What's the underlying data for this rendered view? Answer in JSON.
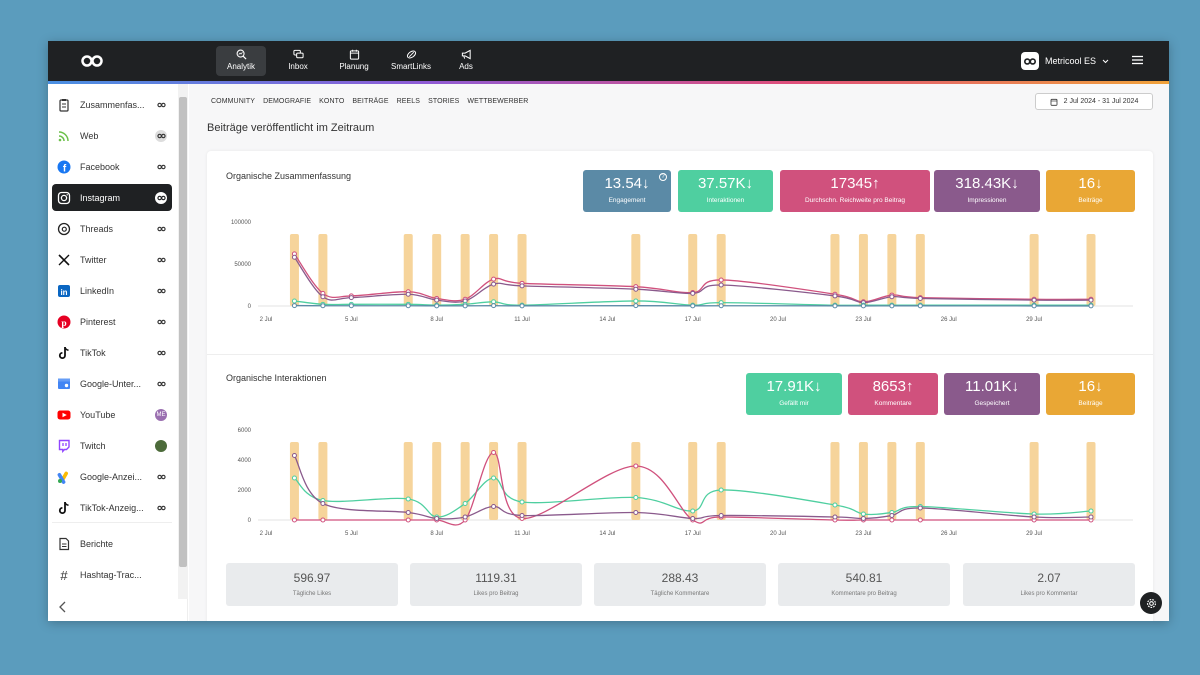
{
  "topnav": {
    "items": [
      {
        "label": "Analytik",
        "icon": "analytics-icon"
      },
      {
        "label": "Inbox",
        "icon": "inbox-icon"
      },
      {
        "label": "Planung",
        "icon": "calendar-icon"
      },
      {
        "label": "SmartLinks",
        "icon": "link-icon"
      },
      {
        "label": "Ads",
        "icon": "megaphone-icon"
      }
    ],
    "active": "Analytik",
    "account": "Metricool ES"
  },
  "sidebar": {
    "items": [
      {
        "label": "Zusammenfas...",
        "icon": "clipboard-icon"
      },
      {
        "label": "Web",
        "icon": "rss-icon"
      },
      {
        "label": "Facebook",
        "icon": "facebook-icon"
      },
      {
        "label": "Instagram",
        "icon": "instagram-icon"
      },
      {
        "label": "Threads",
        "icon": "threads-icon"
      },
      {
        "label": "Twitter",
        "icon": "x-icon"
      },
      {
        "label": "LinkedIn",
        "icon": "linkedin-icon"
      },
      {
        "label": "Pinterest",
        "icon": "pinterest-icon"
      },
      {
        "label": "TikTok",
        "icon": "tiktok-icon"
      },
      {
        "label": "Google-Unter...",
        "icon": "google-business-icon"
      },
      {
        "label": "YouTube",
        "icon": "youtube-icon"
      },
      {
        "label": "Twitch",
        "icon": "twitch-icon"
      },
      {
        "label": "Google-Anzei...",
        "icon": "google-ads-icon"
      },
      {
        "label": "TikTok-Anzeig...",
        "icon": "tiktok-ads-icon"
      },
      {
        "label": "Berichte",
        "icon": "report-icon"
      },
      {
        "label": "Hashtag-Trac...",
        "icon": "hashtag-icon"
      }
    ],
    "active": "Instagram",
    "badge_me": "ME"
  },
  "tabs": [
    "COMMUNITY",
    "DEMOGRAFIE",
    "KONTO",
    "BEITRÄGE",
    "REELS",
    "STORIES",
    "WETTBEWERBER"
  ],
  "date_range": "2 Jul 2024 - 31 Jul 2024",
  "page_title": "Beiträge veröffentlicht im Zeitraum",
  "summary": {
    "title": "Organische Zusammenfassung",
    "kpis": [
      {
        "value": "13.54",
        "arrow": "down",
        "label": "Engagement",
        "color": "#5b8aa6"
      },
      {
        "value": "37.57K",
        "arrow": "down",
        "label": "Interaktionen",
        "color": "#4fcfa0"
      },
      {
        "value": "17345",
        "arrow": "up",
        "label": "Durchschn. Reichweite pro Beitrag",
        "color": "#d0517d"
      },
      {
        "value": "318.43K",
        "arrow": "down",
        "label": "Impressionen",
        "color": "#8a5a8c"
      },
      {
        "value": "16",
        "arrow": "down",
        "label": "Beiträge",
        "color": "#e9a735"
      }
    ]
  },
  "interactions": {
    "title": "Organische Interaktionen",
    "kpis": [
      {
        "value": "17.91K",
        "arrow": "down",
        "label": "Gefällt mir",
        "color": "#4fcfa0"
      },
      {
        "value": "8653",
        "arrow": "up",
        "label": "Kommentare",
        "color": "#d0517d"
      },
      {
        "value": "11.01K",
        "arrow": "down",
        "label": "Gespeichert",
        "color": "#8a5a8c"
      },
      {
        "value": "16",
        "arrow": "down",
        "label": "Beiträge",
        "color": "#e9a735"
      }
    ]
  },
  "stats": [
    {
      "value": "596.97",
      "label": "Tägliche Likes"
    },
    {
      "value": "1119.31",
      "label": "Likes pro Beitrag"
    },
    {
      "value": "288.43",
      "label": "Tägliche Kommentare"
    },
    {
      "value": "540.81",
      "label": "Kommentare pro Beitrag"
    },
    {
      "value": "2.07",
      "label": "Likes pro Kommentar"
    }
  ],
  "chart_data": [
    {
      "type": "line",
      "x_ticks": [
        "2 Jul",
        "5 Jul",
        "8 Jul",
        "11 Jul",
        "14 Jul",
        "17 Jul",
        "20 Jul",
        "23 Jul",
        "26 Jul",
        "29 Jul"
      ],
      "x_range": [
        2,
        31
      ],
      "ylim": [
        0,
        100000
      ],
      "y_ticks": [
        "0",
        "50000",
        "100000"
      ],
      "bar_days": [
        3,
        4,
        7,
        8,
        9,
        10,
        11,
        15,
        17,
        18,
        22,
        23,
        24,
        25,
        29,
        31
      ],
      "bar_color": "#f6d49b",
      "series": [
        {
          "color": "#d0517d",
          "points": [
            [
              3,
              62000
            ],
            [
              4,
              15000
            ],
            [
              5,
              12000
            ],
            [
              7,
              17000
            ],
            [
              8,
              9000
            ],
            [
              9,
              8000
            ],
            [
              10,
              32000
            ],
            [
              11,
              27000
            ],
            [
              15,
              23000
            ],
            [
              17,
              16000
            ],
            [
              18,
              31000
            ],
            [
              22,
              14000
            ],
            [
              23,
              5000
            ],
            [
              24,
              13000
            ],
            [
              25,
              10000
            ],
            [
              29,
              8000
            ],
            [
              31,
              8000
            ]
          ]
        },
        {
          "color": "#8a5a8c",
          "points": [
            [
              3,
              58000
            ],
            [
              4,
              11000
            ],
            [
              5,
              10000
            ],
            [
              7,
              14000
            ],
            [
              8,
              7000
            ],
            [
              9,
              6000
            ],
            [
              10,
              26000
            ],
            [
              11,
              24000
            ],
            [
              15,
              20000
            ],
            [
              17,
              15000
            ],
            [
              18,
              25000
            ],
            [
              22,
              12000
            ],
            [
              23,
              4000
            ],
            [
              24,
              11000
            ],
            [
              25,
              9000
            ],
            [
              29,
              7000
            ],
            [
              31,
              7000
            ]
          ]
        },
        {
          "color": "#4fcfa0",
          "points": [
            [
              3,
              6000
            ],
            [
              4,
              2000
            ],
            [
              5,
              2000
            ],
            [
              7,
              2000
            ],
            [
              8,
              1000
            ],
            [
              9,
              2000
            ],
            [
              10,
              5000
            ],
            [
              11,
              1000
            ],
            [
              15,
              6000
            ],
            [
              17,
              1000
            ],
            [
              18,
              4000
            ],
            [
              22,
              1000
            ],
            [
              23,
              1000
            ],
            [
              24,
              1000
            ],
            [
              25,
              1000
            ],
            [
              29,
              1000
            ],
            [
              31,
              1000
            ]
          ]
        },
        {
          "color": "#5b8aa6",
          "points": [
            [
              3,
              500
            ],
            [
              4,
              300
            ],
            [
              5,
              300
            ],
            [
              7,
              300
            ],
            [
              8,
              200
            ],
            [
              9,
              200
            ],
            [
              10,
              400
            ],
            [
              11,
              200
            ],
            [
              15,
              400
            ],
            [
              17,
              200
            ],
            [
              18,
              300
            ],
            [
              22,
              200
            ],
            [
              23,
              100
            ],
            [
              24,
              200
            ],
            [
              25,
              200
            ],
            [
              29,
              100
            ],
            [
              31,
              100
            ]
          ]
        }
      ]
    },
    {
      "type": "line",
      "x_ticks": [
        "2 Jul",
        "5 Jul",
        "8 Jul",
        "11 Jul",
        "14 Jul",
        "17 Jul",
        "20 Jul",
        "23 Jul",
        "26 Jul",
        "29 Jul"
      ],
      "x_range": [
        2,
        31
      ],
      "ylim": [
        0,
        6000
      ],
      "y_ticks": [
        "0",
        "2000",
        "4000",
        "6000"
      ],
      "bar_days": [
        3,
        4,
        7,
        8,
        9,
        10,
        11,
        15,
        17,
        18,
        22,
        23,
        24,
        25,
        29,
        31
      ],
      "bar_color": "#f6d49b",
      "series": [
        {
          "color": "#4fcfa0",
          "points": [
            [
              3,
              2800
            ],
            [
              4,
              1300
            ],
            [
              7,
              1400
            ],
            [
              8,
              200
            ],
            [
              9,
              1100
            ],
            [
              10,
              2800
            ],
            [
              11,
              1200
            ],
            [
              15,
              1500
            ],
            [
              17,
              600
            ],
            [
              18,
              2000
            ],
            [
              22,
              1000
            ],
            [
              23,
              400
            ],
            [
              24,
              500
            ],
            [
              25,
              900
            ],
            [
              29,
              400
            ],
            [
              31,
              600
            ]
          ]
        },
        {
          "color": "#d0517d",
          "points": [
            [
              3,
              0
            ],
            [
              4,
              0
            ],
            [
              7,
              0
            ],
            [
              8,
              0
            ],
            [
              9,
              0
            ],
            [
              10,
              4500
            ],
            [
              11,
              100
            ],
            [
              15,
              3600
            ],
            [
              17,
              0
            ],
            [
              18,
              200
            ],
            [
              22,
              0
            ],
            [
              23,
              0
            ],
            [
              24,
              0
            ],
            [
              25,
              0
            ],
            [
              29,
              0
            ],
            [
              31,
              0
            ]
          ]
        },
        {
          "color": "#8a5a8c",
          "points": [
            [
              3,
              4300
            ],
            [
              4,
              1100
            ],
            [
              7,
              500
            ],
            [
              8,
              100
            ],
            [
              9,
              200
            ],
            [
              10,
              900
            ],
            [
              11,
              300
            ],
            [
              15,
              500
            ],
            [
              17,
              100
            ],
            [
              18,
              300
            ],
            [
              22,
              200
            ],
            [
              23,
              100
            ],
            [
              24,
              300
            ],
            [
              25,
              800
            ],
            [
              29,
              200
            ],
            [
              31,
              200
            ]
          ]
        }
      ]
    }
  ]
}
